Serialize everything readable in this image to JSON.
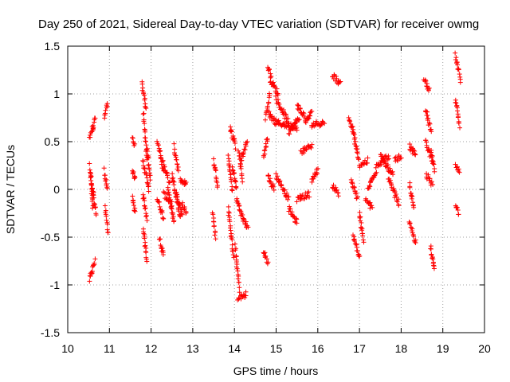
{
  "chart_data": {
    "type": "scatter",
    "title": "Day 250 of 2021, Sidereal Day-to-day VTEC variation (SDTVAR) for receiver owmg",
    "xlabel": "GPS time / hours",
    "ylabel": "SDTVAR / TECUs",
    "xlim": [
      10,
      20
    ],
    "ylim": [
      -1.5,
      1.5
    ],
    "xticks": [
      "10",
      "11",
      "12",
      "13",
      "14",
      "15",
      "16",
      "17",
      "18",
      "19",
      "20"
    ],
    "yticks": [
      "-1.5",
      "-1",
      "-0.5",
      "0",
      "0.5",
      "1",
      "1.5"
    ],
    "grid": true,
    "marker": "+",
    "color": "#ff0000",
    "series": [
      {
        "name": "SDTVAR",
        "segments": [
          {
            "x": [
              10.52,
              10.65
            ],
            "y": [
              -0.95,
              -0.75
            ]
          },
          {
            "x": [
              10.52,
              10.6
            ],
            "y": [
              0.55,
              0.65
            ]
          },
          {
            "x": [
              10.52,
              10.62
            ],
            "y": [
              0.25,
              -0.05
            ]
          },
          {
            "x": [
              10.55,
              10.6
            ],
            "y": [
              0.15,
              -0.2
            ]
          },
          {
            "x": [
              10.6,
              10.66
            ],
            "y": [
              0.6,
              0.75
            ]
          },
          {
            "x": [
              10.6,
              10.68
            ],
            "y": [
              -0.05,
              -0.25
            ]
          },
          {
            "x": [
              10.88,
              10.95
            ],
            "y": [
              0.75,
              0.9
            ]
          },
          {
            "x": [
              10.88,
              10.95
            ],
            "y": [
              0.2,
              0.0
            ]
          },
          {
            "x": [
              10.9,
              10.97
            ],
            "y": [
              -0.2,
              -0.45
            ]
          },
          {
            "x": [
              11.55,
              11.6
            ],
            "y": [
              0.55,
              0.45
            ]
          },
          {
            "x": [
              11.55,
              11.62
            ],
            "y": [
              0.2,
              0.1
            ]
          },
          {
            "x": [
              11.55,
              11.62
            ],
            "y": [
              -0.1,
              -0.25
            ]
          },
          {
            "x": [
              11.78,
              11.88
            ],
            "y": [
              1.1,
              0.85
            ]
          },
          {
            "x": [
              11.82,
              11.9
            ],
            "y": [
              0.8,
              0.3
            ]
          },
          {
            "x": [
              11.8,
              11.95
            ],
            "y": [
              0.3,
              0.0
            ]
          },
          {
            "x": [
              11.8,
              11.9
            ],
            "y": [
              -0.05,
              -0.3
            ]
          },
          {
            "x": [
              11.82,
              11.9
            ],
            "y": [
              -0.4,
              -0.75
            ]
          },
          {
            "x": [
              11.9,
              11.98
            ],
            "y": [
              0.45,
              0.1
            ]
          },
          {
            "x": [
              12.15,
              12.3
            ],
            "y": [
              0.5,
              0.2
            ]
          },
          {
            "x": [
              12.15,
              12.3
            ],
            "y": [
              -0.1,
              -0.3
            ]
          },
          {
            "x": [
              12.2,
              12.3
            ],
            "y": [
              -0.5,
              -0.7
            ]
          },
          {
            "x": [
              12.28,
              12.45
            ],
            "y": [
              0.3,
              0.05
            ]
          },
          {
            "x": [
              12.3,
              12.5
            ],
            "y": [
              -0.05,
              -0.15
            ]
          },
          {
            "x": [
              12.4,
              12.55
            ],
            "y": [
              0.0,
              -0.35
            ]
          },
          {
            "x": [
              12.5,
              12.7
            ],
            "y": [
              0.15,
              -0.3
            ]
          },
          {
            "x": [
              12.55,
              12.65
            ],
            "y": [
              0.45,
              0.2
            ]
          },
          {
            "x": [
              12.6,
              12.75
            ],
            "y": [
              -0.05,
              -0.25
            ]
          },
          {
            "x": [
              12.7,
              12.85
            ],
            "y": [
              0.1,
              0.05
            ]
          },
          {
            "x": [
              12.75,
              12.85
            ],
            "y": [
              -0.15,
              -0.25
            ]
          },
          {
            "x": [
              13.5,
              13.6
            ],
            "y": [
              0.3,
              0.05
            ]
          },
          {
            "x": [
              13.48,
              13.55
            ],
            "y": [
              -0.25,
              -0.5
            ]
          },
          {
            "x": [
              13.85,
              13.95
            ],
            "y": [
              0.35,
              0.0
            ]
          },
          {
            "x": [
              13.85,
              13.98
            ],
            "y": [
              -0.2,
              -0.7
            ]
          },
          {
            "x": [
              13.9,
              14.02
            ],
            "y": [
              0.65,
              0.45
            ]
          },
          {
            "x": [
              13.95,
              14.05
            ],
            "y": [
              0.25,
              0.0
            ]
          },
          {
            "x": [
              14.02,
              14.12
            ],
            "y": [
              -0.6,
              -1.05
            ]
          },
          {
            "x": [
              14.08,
              14.28
            ],
            "y": [
              -1.15,
              -1.1
            ]
          },
          {
            "x": [
              14.05,
              14.2
            ],
            "y": [
              -0.1,
              -0.3
            ]
          },
          {
            "x": [
              14.1,
              14.2
            ],
            "y": [
              0.4,
              0.1
            ]
          },
          {
            "x": [
              14.15,
              14.3
            ],
            "y": [
              0.3,
              0.5
            ]
          },
          {
            "x": [
              14.2,
              14.32
            ],
            "y": [
              -0.3,
              -0.4
            ]
          },
          {
            "x": [
              14.7,
              14.8
            ],
            "y": [
              -0.65,
              -0.78
            ]
          },
          {
            "x": [
              14.7,
              14.8
            ],
            "y": [
              0.35,
              0.55
            ]
          },
          {
            "x": [
              14.75,
              14.85
            ],
            "y": [
              0.75,
              1.0
            ]
          },
          {
            "x": [
              14.8,
              14.88
            ],
            "y": [
              1.28,
              1.2
            ]
          },
          {
            "x": [
              14.85,
              15.05
            ],
            "y": [
              1.15,
              1.0
            ]
          },
          {
            "x": [
              14.82,
              15.0
            ],
            "y": [
              0.8,
              0.7
            ]
          },
          {
            "x": [
              15.0,
              15.3
            ],
            "y": [
              0.95,
              0.7
            ]
          },
          {
            "x": [
              15.0,
              15.5
            ],
            "y": [
              0.7,
              0.65
            ]
          },
          {
            "x": [
              15.3,
              15.55
            ],
            "y": [
              0.6,
              0.75
            ]
          },
          {
            "x": [
              15.5,
              15.7
            ],
            "y": [
              0.88,
              0.75
            ]
          },
          {
            "x": [
              15.7,
              15.85
            ],
            "y": [
              0.7,
              0.8
            ]
          },
          {
            "x": [
              15.85,
              16.15
            ],
            "y": [
              0.68,
              0.7
            ]
          },
          {
            "x": [
              14.8,
              14.95
            ],
            "y": [
              0.15,
              0.0
            ]
          },
          {
            "x": [
              15.0,
              15.3
            ],
            "y": [
              0.15,
              -0.1
            ]
          },
          {
            "x": [
              15.3,
              15.5
            ],
            "y": [
              -0.2,
              -0.35
            ]
          },
          {
            "x": [
              15.5,
              15.8
            ],
            "y": [
              -0.1,
              -0.05
            ]
          },
          {
            "x": [
              15.6,
              15.85
            ],
            "y": [
              0.4,
              0.45
            ]
          },
          {
            "x": [
              15.85,
              16.0
            ],
            "y": [
              0.1,
              0.2
            ]
          },
          {
            "x": [
              16.35,
              16.55
            ],
            "y": [
              1.2,
              1.1
            ]
          },
          {
            "x": [
              16.35,
              16.5
            ],
            "y": [
              0.05,
              -0.05
            ]
          },
          {
            "x": [
              16.75,
              16.85
            ],
            "y": [
              0.75,
              0.6
            ]
          },
          {
            "x": [
              16.85,
              16.98
            ],
            "y": [
              0.6,
              0.3
            ]
          },
          {
            "x": [
              16.8,
              16.95
            ],
            "y": [
              0.1,
              -0.1
            ]
          },
          {
            "x": [
              16.85,
              17.0
            ],
            "y": [
              -0.5,
              -0.7
            ]
          },
          {
            "x": [
              17.0,
              17.2
            ],
            "y": [
              0.25,
              0.3
            ]
          },
          {
            "x": [
              17.0,
              17.1
            ],
            "y": [
              -0.25,
              -0.55
            ]
          },
          {
            "x": [
              17.15,
              17.3
            ],
            "y": [
              -0.1,
              -0.2
            ]
          },
          {
            "x": [
              17.2,
              17.4
            ],
            "y": [
              0.0,
              0.2
            ]
          },
          {
            "x": [
              17.4,
              17.7
            ],
            "y": [
              0.25,
              0.35
            ]
          },
          {
            "x": [
              17.5,
              17.8
            ],
            "y": [
              0.35,
              0.15
            ]
          },
          {
            "x": [
              17.7,
              17.95
            ],
            "y": [
              0.1,
              -0.15
            ]
          },
          {
            "x": [
              17.85,
              18.0
            ],
            "y": [
              0.3,
              0.35
            ]
          },
          {
            "x": [
              18.2,
              18.35
            ],
            "y": [
              0.45,
              0.35
            ]
          },
          {
            "x": [
              18.2,
              18.3
            ],
            "y": [
              0.05,
              -0.2
            ]
          },
          {
            "x": [
              18.2,
              18.35
            ],
            "y": [
              -0.35,
              -0.55
            ]
          },
          {
            "x": [
              18.55,
              18.68
            ],
            "y": [
              1.15,
              1.05
            ]
          },
          {
            "x": [
              18.58,
              18.72
            ],
            "y": [
              0.85,
              0.6
            ]
          },
          {
            "x": [
              18.58,
              18.75
            ],
            "y": [
              0.5,
              0.3
            ]
          },
          {
            "x": [
              18.6,
              18.75
            ],
            "y": [
              0.15,
              0.05
            ]
          },
          {
            "x": [
              18.7,
              18.8
            ],
            "y": [
              -0.6,
              -0.85
            ]
          },
          {
            "x": [
              18.72,
              18.8
            ],
            "y": [
              0.4,
              0.2
            ]
          },
          {
            "x": [
              19.3,
              19.42
            ],
            "y": [
              1.4,
              1.15
            ]
          },
          {
            "x": [
              19.3,
              19.4
            ],
            "y": [
              0.95,
              0.65
            ]
          },
          {
            "x": [
              19.3,
              19.4
            ],
            "y": [
              0.25,
              0.2
            ]
          },
          {
            "x": [
              19.3,
              19.38
            ],
            "y": [
              -0.15,
              -0.25
            ]
          }
        ]
      }
    ]
  }
}
